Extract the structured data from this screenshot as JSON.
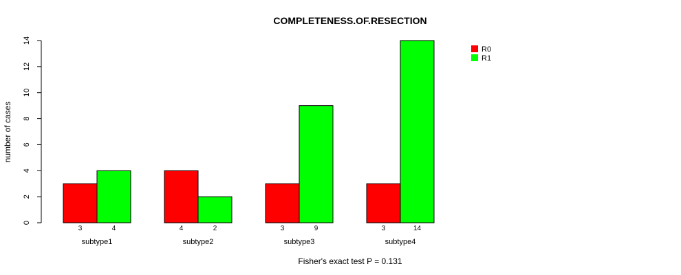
{
  "chart_data": {
    "type": "bar",
    "title": "COMPLETENESS.OF.RESECTION",
    "xlabel": "",
    "ylabel": "number of cases",
    "subtitle": "Fisher's exact test P = 0.131",
    "categories": [
      "subtype1",
      "subtype2",
      "subtype3",
      "subtype4"
    ],
    "series": [
      {
        "name": "R0",
        "color": "#ff0000",
        "values": [
          3,
          4,
          3,
          3
        ]
      },
      {
        "name": "R1",
        "color": "#00ff00",
        "values": [
          4,
          2,
          9,
          14
        ]
      }
    ],
    "ylim": [
      0,
      14
    ],
    "yticks": [
      0,
      2,
      4,
      6,
      8,
      10,
      12,
      14
    ],
    "grid": false,
    "legend_position": "top-right"
  }
}
